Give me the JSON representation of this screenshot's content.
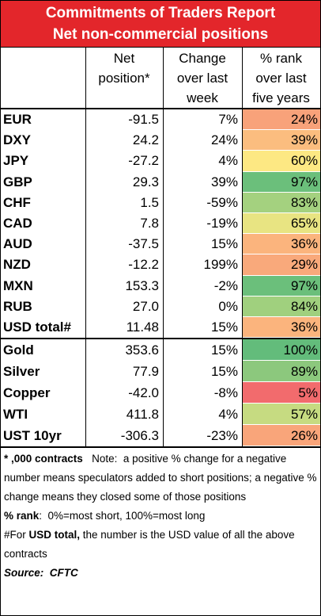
{
  "title": [
    "Commitments of Traders Report",
    "Net non-commercial positions"
  ],
  "columns": [
    [
      "Net",
      "position*"
    ],
    [
      "Change",
      "over last",
      "week"
    ],
    [
      "% rank",
      "over last",
      "five years"
    ]
  ],
  "groups": [
    [
      {
        "label": "EUR",
        "net": "-91.5",
        "change": "7%",
        "rank": "24%",
        "color": "#f8a27a"
      },
      {
        "label": "DXY",
        "net": "24.2",
        "change": "24%",
        "rank": "39%",
        "color": "#fbbd7f"
      },
      {
        "label": "JPY",
        "net": "-27.2",
        "change": "4%",
        "rank": "60%",
        "color": "#fde883"
      },
      {
        "label": "GBP",
        "net": "29.3",
        "change": "39%",
        "rank": "97%",
        "color": "#6bbf7b"
      },
      {
        "label": "CHF",
        "net": "1.5",
        "change": "-59%",
        "rank": "83%",
        "color": "#a4d17f"
      },
      {
        "label": "CAD",
        "net": "7.8",
        "change": "-19%",
        "rank": "65%",
        "color": "#e8e482"
      },
      {
        "label": "AUD",
        "net": "-37.5",
        "change": "15%",
        "rank": "36%",
        "color": "#fbb47d"
      },
      {
        "label": "NZD",
        "net": "-12.2",
        "change": "199%",
        "rank": "29%",
        "color": "#f9a97b"
      },
      {
        "label": "MXN",
        "net": "153.3",
        "change": "-2%",
        "rank": "97%",
        "color": "#6bbf7b"
      },
      {
        "label": "RUB",
        "net": "27.0",
        "change": "0%",
        "rank": "84%",
        "color": "#a0d07e"
      },
      {
        "label": "USD total#",
        "net": "11.48",
        "change": "15%",
        "rank": "36%",
        "color": "#fbb47d"
      }
    ],
    [
      {
        "label": "Gold",
        "net": "353.6",
        "change": "15%",
        "rank": "100%",
        "color": "#63bc7b"
      },
      {
        "label": "Silver",
        "net": "77.9",
        "change": "15%",
        "rank": "89%",
        "color": "#8cc87d"
      },
      {
        "label": "Copper",
        "net": "-42.0",
        "change": "-8%",
        "rank": "5%",
        "color": "#f26b6d"
      },
      {
        "label": "WTI",
        "net": "411.8",
        "change": "4%",
        "rank": "57%",
        "color": "#c6db81"
      },
      {
        "label": "UST 10yr",
        "net": "-306.3",
        "change": "-23%",
        "rank": "26%",
        "color": "#f9a57a"
      }
    ]
  ],
  "notes": [
    [
      {
        "text": "* ,000 contracts",
        "style": "b"
      },
      {
        "text": "   Note:  a positive % change for a negative number means speculators added to short positions; a negative % change means they closed some of those positions",
        "style": "n"
      }
    ],
    [
      {
        "text": "% rank",
        "style": "b"
      },
      {
        "text": ":  0%=most short, 100%=most long",
        "style": "n"
      }
    ],
    [
      {
        "text": "#For ",
        "style": "n"
      },
      {
        "text": "USD total,",
        "style": "b"
      },
      {
        "text": " the number is the USD value of all the above contracts",
        "style": "n"
      }
    ],
    [
      {
        "text": "Source:  CFTC",
        "style": "bi"
      }
    ]
  ]
}
